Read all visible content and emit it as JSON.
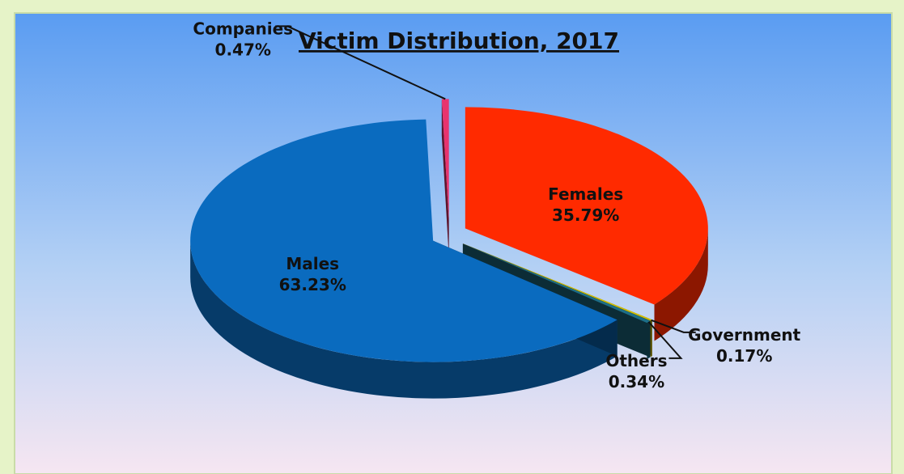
{
  "chart_data": {
    "type": "pie",
    "title": "Victim Distribution, 2017",
    "categories": [
      "Females",
      "Government",
      "Others",
      "Males",
      "Companies"
    ],
    "values": [
      35.79,
      0.17,
      0.34,
      63.23,
      0.47
    ],
    "value_labels": [
      "35.79%",
      "0.17%",
      "0.34%",
      "63.23%",
      "0.47%"
    ],
    "colors": [
      "#ff2a00",
      "#d6c200",
      "#1d6e88",
      "#0a6bbf",
      "#e8336e"
    ]
  }
}
